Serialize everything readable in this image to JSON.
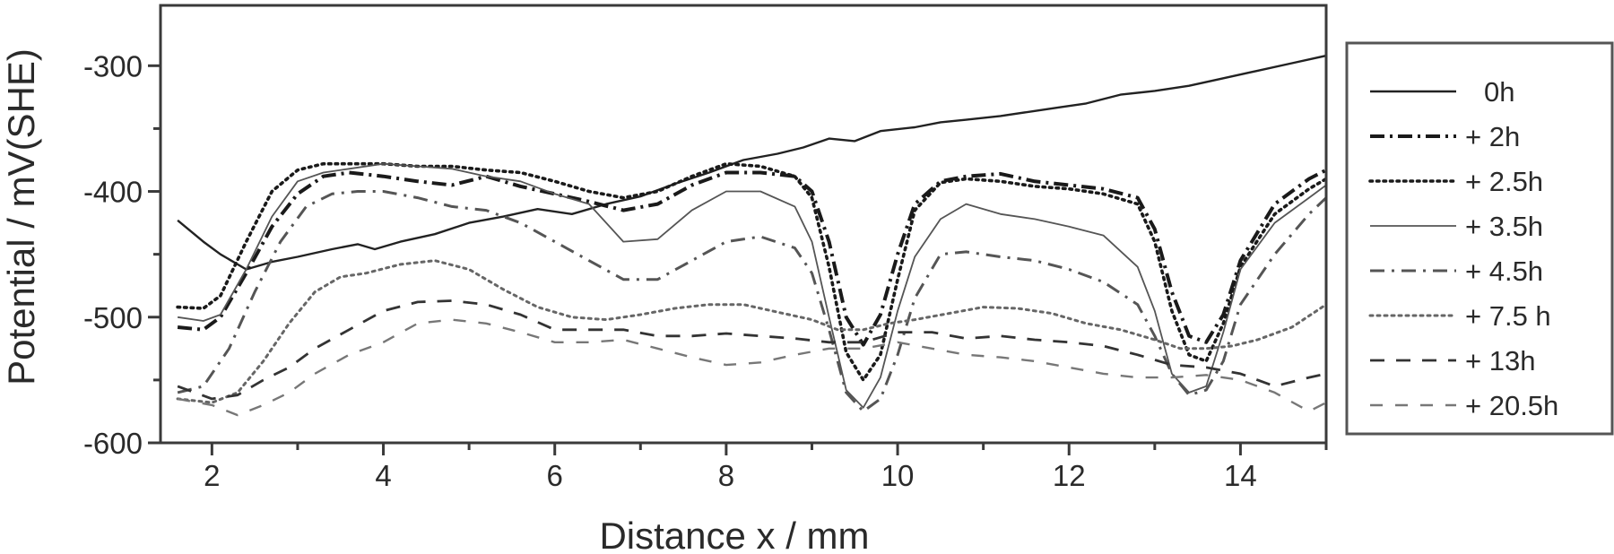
{
  "chart_data": {
    "type": "line",
    "title": "",
    "xlabel": "Distance x / mm",
    "ylabel": "Potential / mV(SHE)",
    "xlim": [
      1.4,
      15.0
    ],
    "ylim": [
      -600,
      -252
    ],
    "xticks": [
      2,
      4,
      6,
      8,
      10,
      12,
      14
    ],
    "xtick_labels": [
      "2",
      "4",
      "6",
      "8",
      "10",
      "12",
      "14"
    ],
    "yticks": [
      -300,
      -400,
      -500,
      -600
    ],
    "ytick_labels": [
      "-300",
      "-400",
      "-500",
      "-600"
    ],
    "grid": false,
    "legend_position": "right, outside plot",
    "series": [
      {
        "name": "0h",
        "legend_label": "0h",
        "style": "solid",
        "color": "#222222",
        "width": 2.4,
        "x": [
          1.6,
          1.9,
          2.1,
          2.4,
          2.7,
          3.0,
          3.4,
          3.7,
          3.9,
          4.2,
          4.6,
          5.0,
          5.4,
          5.8,
          6.2,
          6.6,
          7.0,
          7.4,
          7.8,
          8.2,
          8.6,
          8.9,
          9.2,
          9.5,
          9.8,
          10.2,
          10.5,
          10.8,
          11.2,
          11.6,
          11.9,
          12.2,
          12.6,
          13.0,
          13.4,
          13.8,
          14.2,
          14.6,
          15.0
        ],
        "y": [
          -423,
          -440,
          -450,
          -462,
          -456,
          -452,
          -446,
          -442,
          -446,
          -440,
          -434,
          -425,
          -420,
          -414,
          -418,
          -410,
          -404,
          -394,
          -385,
          -375,
          -370,
          -365,
          -358,
          -360,
          -352,
          -349,
          -345,
          -343,
          -340,
          -336,
          -333,
          -330,
          -323,
          -320,
          -316,
          -310,
          -304,
          -298,
          -292
        ]
      },
      {
        "name": "+ 2h",
        "legend_label": "+ 2h",
        "style": "dashdot-heavy",
        "color": "#1a1a1a",
        "width": 4.0,
        "x": [
          1.6,
          1.9,
          2.1,
          2.4,
          2.7,
          3.0,
          3.3,
          3.6,
          4.0,
          4.4,
          4.8,
          5.2,
          5.6,
          6.0,
          6.4,
          6.8,
          7.2,
          7.6,
          8.0,
          8.4,
          8.8,
          9.0,
          9.2,
          9.4,
          9.6,
          9.8,
          10.0,
          10.2,
          10.5,
          10.8,
          11.2,
          11.6,
          12.0,
          12.4,
          12.8,
          13.0,
          13.2,
          13.4,
          13.6,
          13.8,
          14.0,
          14.4,
          14.8,
          15.0
        ],
        "y": [
          -508,
          -510,
          -500,
          -465,
          -428,
          -402,
          -388,
          -385,
          -388,
          -392,
          -395,
          -388,
          -396,
          -402,
          -408,
          -415,
          -410,
          -395,
          -385,
          -385,
          -388,
          -400,
          -440,
          -500,
          -522,
          -498,
          -450,
          -410,
          -392,
          -388,
          -386,
          -392,
          -395,
          -398,
          -405,
          -430,
          -480,
          -515,
          -520,
          -498,
          -455,
          -410,
          -390,
          -383
        ]
      },
      {
        "name": "+ 2.5h",
        "legend_label": "+ 2.5h",
        "style": "dotted-heavy",
        "color": "#1a1a1a",
        "width": 3.6,
        "x": [
          1.6,
          1.9,
          2.1,
          2.4,
          2.7,
          3.0,
          3.3,
          3.6,
          4.0,
          4.4,
          4.8,
          5.2,
          5.6,
          6.0,
          6.4,
          6.8,
          7.2,
          7.6,
          8.0,
          8.4,
          8.8,
          9.0,
          9.2,
          9.4,
          9.6,
          9.8,
          10.0,
          10.2,
          10.5,
          10.8,
          11.2,
          11.6,
          12.0,
          12.4,
          12.8,
          13.0,
          13.2,
          13.4,
          13.6,
          13.8,
          14.0,
          14.4,
          14.8,
          15.0
        ],
        "y": [
          -492,
          -493,
          -483,
          -440,
          -400,
          -383,
          -378,
          -378,
          -378,
          -380,
          -380,
          -383,
          -385,
          -392,
          -400,
          -405,
          -400,
          -388,
          -378,
          -380,
          -388,
          -405,
          -460,
          -528,
          -550,
          -530,
          -470,
          -415,
          -393,
          -390,
          -392,
          -396,
          -398,
          -402,
          -410,
          -440,
          -495,
          -530,
          -535,
          -505,
          -460,
          -418,
          -398,
          -390
        ]
      },
      {
        "name": "+ 3.5h",
        "legend_label": "+ 3.5h",
        "style": "solid-thin",
        "color": "#555555",
        "width": 1.8,
        "x": [
          1.6,
          1.9,
          2.1,
          2.4,
          2.7,
          3.0,
          3.3,
          3.6,
          4.0,
          4.4,
          4.8,
          5.2,
          5.6,
          6.0,
          6.4,
          6.8,
          7.2,
          7.6,
          8.0,
          8.4,
          8.8,
          9.0,
          9.2,
          9.4,
          9.6,
          9.8,
          10.0,
          10.2,
          10.5,
          10.8,
          11.2,
          11.6,
          12.0,
          12.4,
          12.8,
          13.0,
          13.2,
          13.4,
          13.6,
          13.8,
          14.0,
          14.4,
          14.8,
          15.0
        ],
        "y": [
          -500,
          -503,
          -498,
          -462,
          -420,
          -392,
          -385,
          -382,
          -378,
          -380,
          -382,
          -388,
          -392,
          -402,
          -410,
          -440,
          -438,
          -415,
          -400,
          -400,
          -412,
          -440,
          -500,
          -558,
          -572,
          -548,
          -495,
          -452,
          -422,
          -410,
          -418,
          -422,
          -428,
          -435,
          -460,
          -495,
          -545,
          -560,
          -555,
          -512,
          -462,
          -425,
          -405,
          -395
        ]
      },
      {
        "name": "+ 4.5h",
        "legend_label": "+ 4.5h",
        "style": "dashdot",
        "color": "#555555",
        "width": 3.0,
        "x": [
          1.6,
          1.9,
          2.2,
          2.5,
          2.8,
          3.1,
          3.4,
          3.7,
          4.0,
          4.4,
          4.8,
          5.2,
          5.6,
          6.0,
          6.4,
          6.8,
          7.2,
          7.6,
          8.0,
          8.4,
          8.8,
          9.0,
          9.2,
          9.4,
          9.6,
          9.8,
          10.0,
          10.2,
          10.5,
          10.8,
          11.2,
          11.6,
          12.0,
          12.4,
          12.8,
          13.0,
          13.2,
          13.4,
          13.6,
          13.8,
          14.0,
          14.4,
          14.8,
          15.0
        ],
        "y": [
          -560,
          -555,
          -525,
          -480,
          -440,
          -412,
          -402,
          -400,
          -400,
          -405,
          -412,
          -415,
          -425,
          -440,
          -455,
          -470,
          -470,
          -455,
          -440,
          -436,
          -445,
          -465,
          -510,
          -560,
          -575,
          -565,
          -530,
          -485,
          -450,
          -448,
          -452,
          -455,
          -462,
          -472,
          -490,
          -515,
          -545,
          -562,
          -558,
          -535,
          -490,
          -450,
          -418,
          -405
        ]
      },
      {
        "name": "+ 7.5 h",
        "legend_label": "+ 7.5 h",
        "style": "dotted",
        "color": "#666666",
        "width": 3.0,
        "x": [
          1.6,
          2.0,
          2.3,
          2.6,
          2.9,
          3.2,
          3.5,
          3.8,
          4.2,
          4.6,
          5.0,
          5.4,
          5.8,
          6.2,
          6.6,
          7.0,
          7.4,
          7.8,
          8.2,
          8.6,
          9.0,
          9.3,
          9.6,
          9.9,
          10.2,
          10.6,
          11.0,
          11.4,
          11.8,
          12.2,
          12.6,
          13.0,
          13.3,
          13.6,
          13.9,
          14.2,
          14.6,
          15.0
        ],
        "y": [
          -565,
          -568,
          -560,
          -535,
          -505,
          -480,
          -468,
          -465,
          -458,
          -455,
          -462,
          -478,
          -492,
          -500,
          -502,
          -498,
          -493,
          -490,
          -490,
          -496,
          -502,
          -510,
          -510,
          -505,
          -502,
          -497,
          -492,
          -493,
          -497,
          -505,
          -510,
          -518,
          -525,
          -525,
          -523,
          -518,
          -508,
          -490
        ]
      },
      {
        "name": "+ 13h",
        "legend_label": "+ 13h",
        "style": "dashed",
        "color": "#333333",
        "width": 2.8,
        "x": [
          1.6,
          2.0,
          2.3,
          2.6,
          2.9,
          3.2,
          3.6,
          4.0,
          4.4,
          4.8,
          5.2,
          5.6,
          6.0,
          6.4,
          6.8,
          7.2,
          7.6,
          8.0,
          8.4,
          8.8,
          9.2,
          9.6,
          10.0,
          10.4,
          10.8,
          11.2,
          11.6,
          12.0,
          12.4,
          12.8,
          13.2,
          13.6,
          14.0,
          14.4,
          14.8,
          15.0
        ],
        "y": [
          -555,
          -565,
          -562,
          -550,
          -540,
          -525,
          -510,
          -495,
          -488,
          -487,
          -490,
          -498,
          -510,
          -510,
          -510,
          -515,
          -515,
          -513,
          -515,
          -517,
          -520,
          -520,
          -512,
          -512,
          -517,
          -515,
          -518,
          -520,
          -523,
          -530,
          -538,
          -540,
          -545,
          -555,
          -548,
          -545
        ]
      },
      {
        "name": "+ 20.5h",
        "legend_label": "+ 20.5h",
        "style": "dashed-light",
        "color": "#777777",
        "width": 2.4,
        "x": [
          1.6,
          2.0,
          2.3,
          2.6,
          2.9,
          3.2,
          3.6,
          4.0,
          4.4,
          4.8,
          5.2,
          5.6,
          6.0,
          6.4,
          6.8,
          7.2,
          7.6,
          8.0,
          8.4,
          8.8,
          9.2,
          9.6,
          10.0,
          10.4,
          10.8,
          11.2,
          11.6,
          12.0,
          12.4,
          12.8,
          13.2,
          13.6,
          14.0,
          14.4,
          14.8,
          15.0
        ],
        "y": [
          -565,
          -570,
          -578,
          -570,
          -560,
          -545,
          -530,
          -520,
          -505,
          -502,
          -505,
          -512,
          -520,
          -520,
          -518,
          -525,
          -532,
          -538,
          -536,
          -530,
          -525,
          -525,
          -520,
          -525,
          -530,
          -532,
          -535,
          -540,
          -545,
          -548,
          -548,
          -546,
          -550,
          -560,
          -575,
          -568
        ]
      }
    ]
  },
  "axes": {
    "xlabel": "Distance x / mm",
    "ylabel": "Potential / mV(SHE)"
  },
  "legend": {
    "items": [
      "0h",
      "+ 2h",
      "+ 2.5h",
      "+ 3.5h",
      "+ 4.5h",
      "+ 7.5 h",
      "+ 13h",
      "+ 20.5h"
    ]
  }
}
